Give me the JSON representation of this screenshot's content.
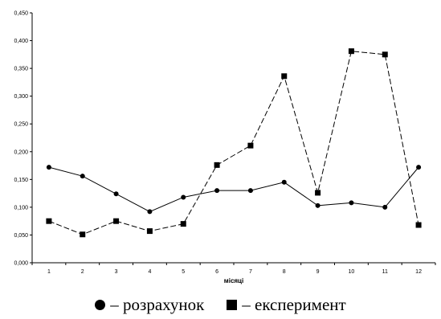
{
  "chart_data": {
    "type": "line",
    "categories": [
      "1",
      "2",
      "3",
      "4",
      "5",
      "6",
      "7",
      "8",
      "9",
      "10",
      "11",
      "12"
    ],
    "xlabel": "місяці",
    "ylabel": "",
    "ylim": [
      0,
      0.45
    ],
    "yticks": [
      "0,000",
      "0,050",
      "0,100",
      "0,150",
      "0,200",
      "0,250",
      "0,300",
      "0,350",
      "0,400",
      "0,450"
    ],
    "grid": false,
    "legend_position": "bottom",
    "series": [
      {
        "name": "– розрахунок",
        "marker": "circle",
        "line_style": "solid",
        "color": "#000000",
        "values": [
          0.172,
          0.156,
          0.124,
          0.092,
          0.118,
          0.13,
          0.13,
          0.145,
          0.103,
          0.108,
          0.1,
          0.172
        ]
      },
      {
        "name": "– експеримент",
        "marker": "square",
        "line_style": "dashed",
        "color": "#000000",
        "values": [
          0.075,
          0.051,
          0.075,
          0.057,
          0.07,
          0.176,
          0.211,
          0.336,
          0.126,
          0.381,
          0.375,
          0.068
        ]
      }
    ]
  }
}
